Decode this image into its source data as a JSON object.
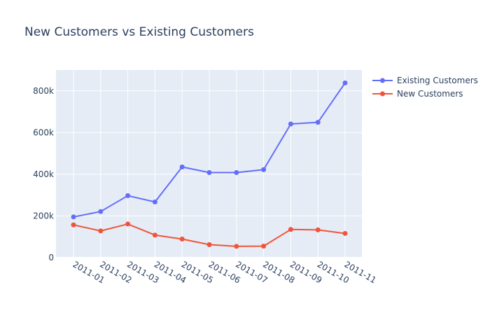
{
  "chart_data": {
    "type": "line",
    "title": "New Customers vs Existing Customers",
    "xlabel": "",
    "ylabel": "",
    "categories": [
      "2011-01",
      "2011-02",
      "2011-03",
      "2011-04",
      "2011-05",
      "2011-06",
      "2011-07",
      "2011-08",
      "2011-09",
      "2011-10",
      "2011-11"
    ],
    "ylim": [
      0,
      900000
    ],
    "yticks": [
      0,
      200000,
      400000,
      600000,
      800000
    ],
    "ytick_labels": [
      "0",
      "200k",
      "400k",
      "600k",
      "800k"
    ],
    "grid": true,
    "legend_position": "top-right",
    "series": [
      {
        "name": "Existing Customers",
        "color": "#636efa",
        "values": [
          195000,
          221000,
          297000,
          267000,
          435000,
          408000,
          408000,
          422000,
          641000,
          649000,
          838000
        ]
      },
      {
        "name": "New Customers",
        "color": "#ef553b",
        "values": [
          157000,
          128000,
          161000,
          108000,
          89000,
          62000,
          54000,
          55000,
          135000,
          133000,
          116000
        ]
      }
    ],
    "plot_background": "#e5ecf6"
  }
}
